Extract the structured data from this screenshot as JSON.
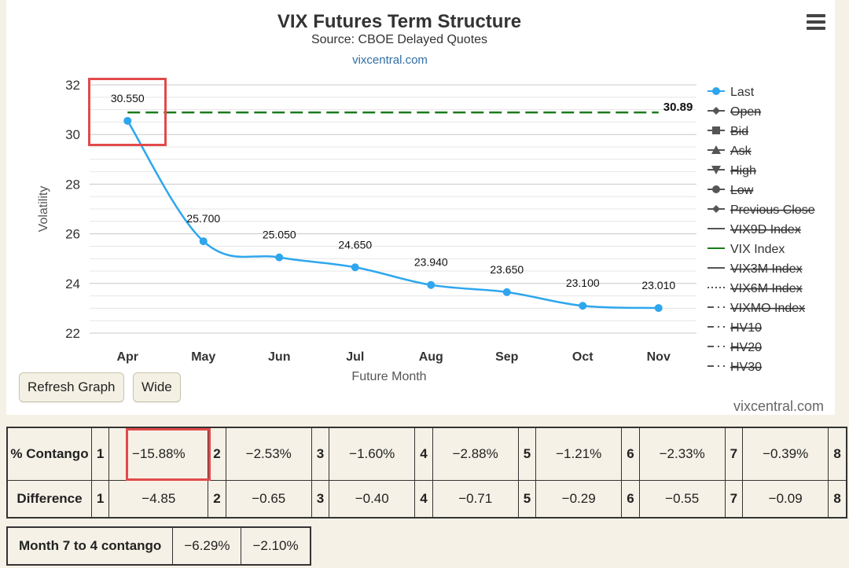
{
  "chart_data": {
    "type": "line",
    "title": "VIX Futures Term Structure",
    "subtitle": "Source: CBOE Delayed Quotes",
    "link": "vixcentral.com",
    "credit": "vixcentral.com",
    "xlabel": "Future Month",
    "ylabel": "Volatility",
    "categories": [
      "Apr",
      "May",
      "Jun",
      "Jul",
      "Aug",
      "Sep",
      "Oct",
      "Nov"
    ],
    "ylim": [
      22,
      32
    ],
    "yticks": [
      "22",
      "24",
      "26",
      "28",
      "30",
      "32"
    ],
    "series": [
      {
        "name": "Last",
        "values": [
          30.55,
          25.7,
          25.05,
          24.65,
          23.94,
          23.65,
          23.1,
          23.01
        ],
        "labels": [
          "30.550",
          "25.700",
          "25.050",
          "24.650",
          "23.940",
          "23.650",
          "23.100",
          "23.010"
        ],
        "color": "#2ea6ee"
      },
      {
        "name": "VIX Index",
        "value": 30.89,
        "label": "30.89",
        "color": "#1b7a1b",
        "dashed": true
      }
    ],
    "legend": [
      {
        "name": "Last",
        "marker": "circle",
        "active": true
      },
      {
        "name": "Open",
        "marker": "diamond",
        "active": false
      },
      {
        "name": "Bid",
        "marker": "square",
        "active": false
      },
      {
        "name": "Ask",
        "marker": "triangle",
        "active": false
      },
      {
        "name": "High",
        "marker": "triangle-down",
        "active": false
      },
      {
        "name": "Low",
        "marker": "circle",
        "active": false
      },
      {
        "name": "Previous Close",
        "marker": "diamond",
        "active": false
      },
      {
        "name": "VIX9D Index",
        "marker": "line",
        "active": false
      },
      {
        "name": "VIX Index",
        "marker": "line",
        "active": true
      },
      {
        "name": "VIX3M Index",
        "marker": "line",
        "active": false
      },
      {
        "name": "VIX6M Index",
        "marker": "dotted",
        "active": false
      },
      {
        "name": "VIXMO Index",
        "marker": "dashdot",
        "active": false
      },
      {
        "name": "HV10",
        "marker": "dashdot",
        "active": false
      },
      {
        "name": "HV20",
        "marker": "dashdot",
        "active": false
      },
      {
        "name": "HV30",
        "marker": "dashdot",
        "active": false
      }
    ],
    "grid": true,
    "legend_position": "right"
  },
  "buttons": {
    "refresh": "Refresh Graph",
    "wide": "Wide"
  },
  "contango": {
    "row1_label": "% Contango",
    "row2_label": "Difference",
    "indices": [
      "1",
      "2",
      "3",
      "4",
      "5",
      "6",
      "7",
      "8"
    ],
    "pct": [
      "−15.88%",
      "−2.53%",
      "−1.60%",
      "−2.88%",
      "−1.21%",
      "−2.33%",
      "−0.39%"
    ],
    "diff": [
      "−4.85",
      "−0.65",
      "−0.40",
      "−0.71",
      "−0.29",
      "−0.55",
      "−0.09"
    ]
  },
  "month74": {
    "label": "Month 7 to 4 contango",
    "v1": "−6.29%",
    "v2": "−2.10%"
  },
  "colors": {
    "accent": "#2ea6ee",
    "vix": "#1b7a1b",
    "highlight": "#e24a4a",
    "panel": "#ffffff",
    "page": "#f5f1e6"
  }
}
